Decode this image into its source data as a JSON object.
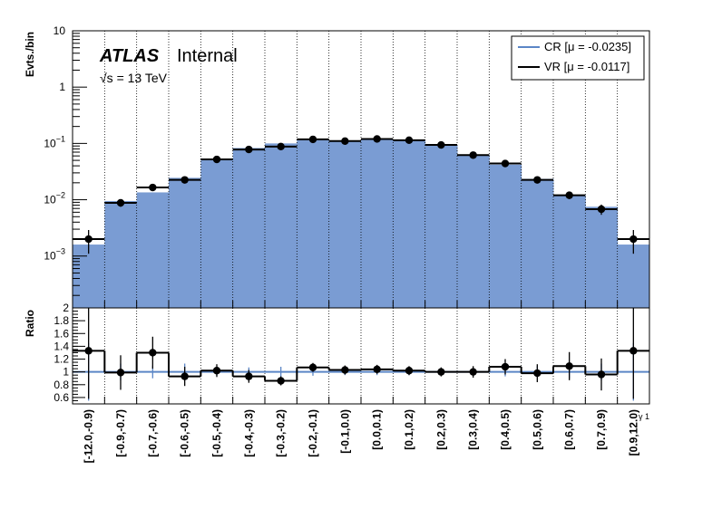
{
  "labels": {
    "atlas": "ATLAS",
    "internal": "Internal",
    "energy_sqrt": "√s",
    "energy_rest": " = 13 TeV"
  },
  "colors": {
    "cr_fill": "#7a9cd3",
    "cr_line": "#5b86c6",
    "data": "#000000"
  },
  "chart_data": [
    {
      "type": "bar",
      "panel": "main",
      "ylabel": "Evts./bin",
      "yscale": "log",
      "ylim": [
        0.00012,
        10
      ],
      "yticks": [
        {
          "value": 0.001,
          "base": "10",
          "exp": "−3"
        },
        {
          "value": 0.01,
          "base": "10",
          "exp": "−2"
        },
        {
          "value": 0.1,
          "base": "10",
          "exp": "−1"
        },
        {
          "value": 1,
          "base": "1",
          "exp": ""
        },
        {
          "value": 10,
          "base": "10",
          "exp": ""
        }
      ],
      "categories": [
        "[-12.0,-0.9)",
        "[-0.9,-0.7)",
        "[-0.7,-0.6)",
        "[-0.6,-0.5)",
        "[-0.5,-0.4)",
        "[-0.4,-0.3)",
        "[-0.3,-0.2)",
        "[-0.2,-0.1)",
        "[-0.1,0.0)",
        "[0.0,0.1)",
        "[0.1,0.2)",
        "[0.2,0.3)",
        "[0.3,0.4)",
        "[0.4,0.5)",
        "[0.5,0.6)",
        "[0.6,0.7)",
        "[0.7,0.9)",
        "[0.9,12.0)"
      ],
      "series": [
        {
          "name": "CR [μ = -0.0235]",
          "style": "filled-histogram",
          "values": [
            0.0016,
            0.0095,
            0.0135,
            0.0245,
            0.052,
            0.083,
            0.1,
            0.115,
            0.108,
            0.116,
            0.112,
            0.093,
            0.063,
            0.042,
            0.0235,
            0.012,
            0.0075,
            0.0016
          ]
        },
        {
          "name": "VR [μ = -0.0117]",
          "style": "step-markers",
          "values": [
            0.002,
            0.0088,
            0.0165,
            0.0225,
            0.052,
            0.078,
            0.088,
            0.118,
            0.11,
            0.12,
            0.114,
            0.094,
            0.062,
            0.044,
            0.0225,
            0.012,
            0.0068,
            0.002
          ],
          "err_up": [
            0.0009,
            0.0013,
            0.0022,
            0.0027,
            0.004,
            0.005,
            0.005,
            0.006,
            0.006,
            0.006,
            0.006,
            0.005,
            0.004,
            0.004,
            0.0025,
            0.0017,
            0.0014,
            0.0009
          ],
          "err_down": [
            0.0009,
            0.0013,
            0.0022,
            0.0027,
            0.004,
            0.005,
            0.005,
            0.006,
            0.006,
            0.006,
            0.006,
            0.005,
            0.004,
            0.004,
            0.0025,
            0.0017,
            0.0014,
            0.0009
          ]
        }
      ],
      "legend": "top-right",
      "grid": "vertical-dotted"
    },
    {
      "type": "line",
      "panel": "ratio",
      "ylabel": "Ratio",
      "xlabel": "γ 1",
      "ylim": [
        0.5,
        2.0
      ],
      "yticks": [
        "0.6",
        "0.8",
        "1",
        "1.2",
        "1.4",
        "1.6",
        "1.8",
        "2"
      ],
      "series": [
        {
          "name": "ratio",
          "values": [
            1.33,
            0.99,
            1.3,
            0.93,
            1.02,
            0.93,
            0.86,
            1.07,
            1.03,
            1.04,
            1.02,
            1.0,
            1.0,
            1.08,
            0.98,
            1.09,
            0.96,
            1.33
          ],
          "err": [
            0.75,
            0.27,
            0.25,
            0.15,
            0.1,
            0.1,
            0.07,
            0.07,
            0.07,
            0.07,
            0.07,
            0.07,
            0.09,
            0.12,
            0.14,
            0.22,
            0.25,
            0.75
          ]
        },
        {
          "name": "cr_uncertainty",
          "values": [
            1.0,
            1.0,
            1.0,
            1.0,
            1.0,
            1.0,
            1.0,
            1.0,
            1.0,
            1.0,
            1.0,
            1.0,
            1.0,
            1.0,
            1.0,
            1.0,
            1.0,
            1.0
          ],
          "err": [
            0.45,
            0.13,
            0.1,
            0.13,
            0.06,
            0.07,
            0.08,
            0.06,
            0.05,
            0.05,
            0.05,
            0.05,
            0.06,
            0.07,
            0.09,
            0.1,
            0.13,
            0.45
          ]
        }
      ]
    }
  ]
}
